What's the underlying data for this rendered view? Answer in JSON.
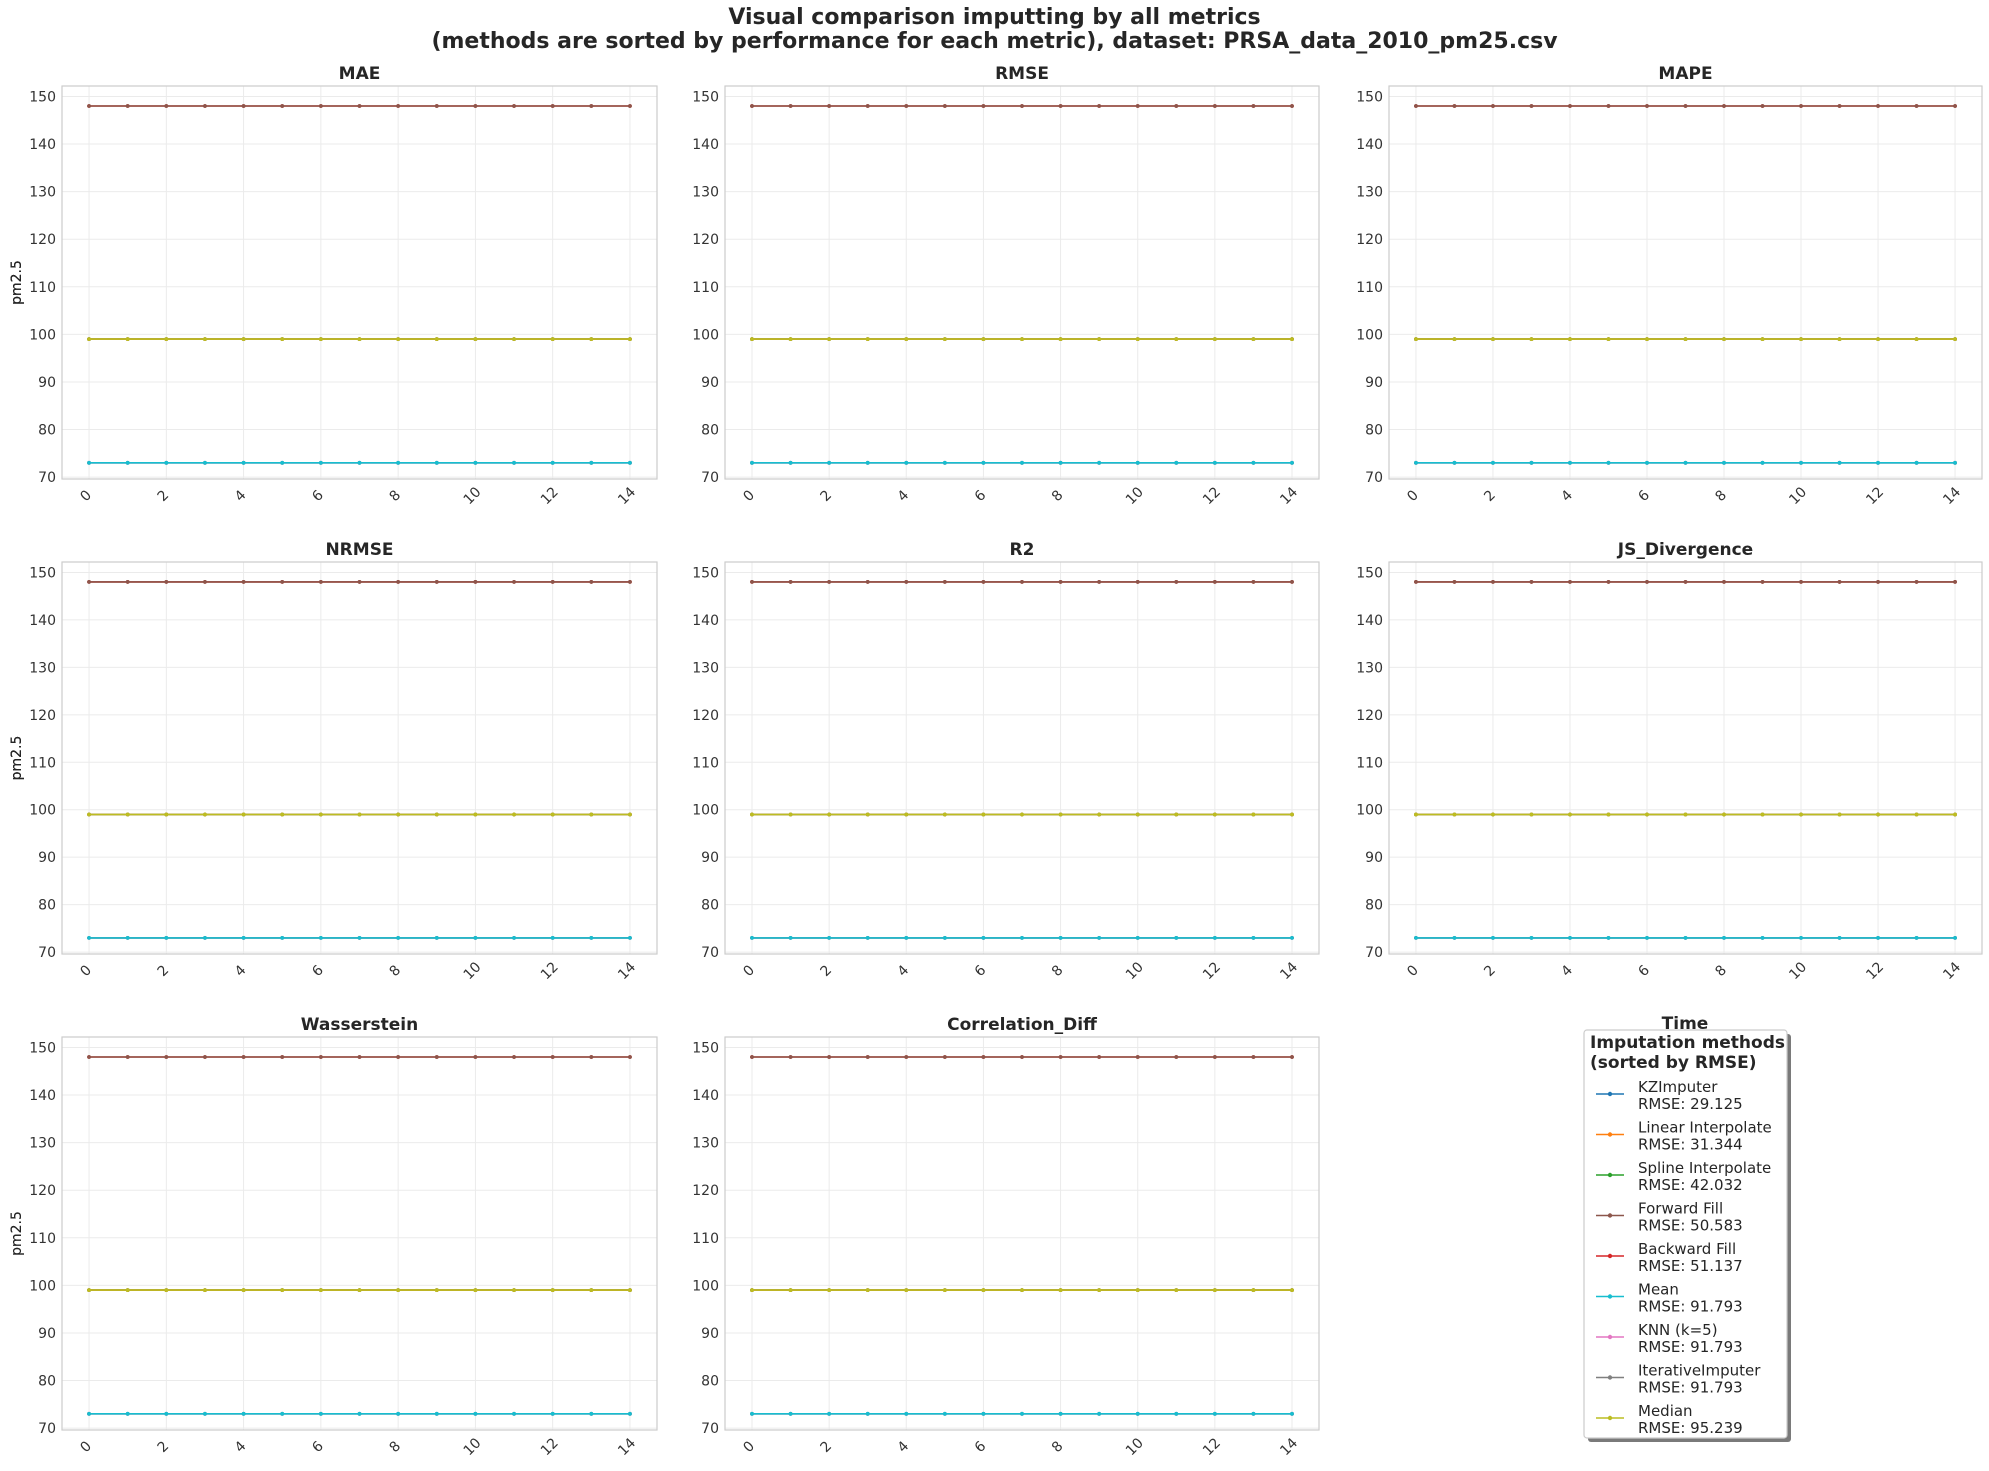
{
  "figure": {
    "title": "Visual comparison imputting by all metrics\n(methods are sorted by performance for each metric),  dataset: PRSA_data_2010_pm25.csv",
    "legend_title": "Imputation methods\n(sorted by RMSE)",
    "stray_label": "Time",
    "legend_placement": "bottom-right cell (third column, third row)"
  },
  "chart_data": [
    {
      "type": "line",
      "title": "MAE",
      "xlabel": "",
      "ylabel": "pm2.5",
      "xlim": [
        -0.7,
        14.7
      ],
      "ylim": [
        69.6,
        152.2
      ],
      "xticks": [
        0,
        2,
        4,
        6,
        8,
        10,
        12,
        14
      ],
      "yticks": [
        70,
        80,
        90,
        100,
        110,
        120,
        130,
        140,
        150
      ],
      "grid": true
    },
    {
      "type": "line",
      "title": "RMSE",
      "xlabel": "",
      "ylabel": "pm2.5",
      "xlim": [
        -0.7,
        14.7
      ],
      "ylim": [
        69.6,
        152.2
      ],
      "xticks": [
        0,
        2,
        4,
        6,
        8,
        10,
        12,
        14
      ],
      "yticks": [
        70,
        80,
        90,
        100,
        110,
        120,
        130,
        140,
        150
      ],
      "grid": true
    },
    {
      "type": "line",
      "title": "MAPE",
      "xlabel": "",
      "ylabel": "pm2.5",
      "xlim": [
        -0.7,
        14.7
      ],
      "ylim": [
        69.6,
        152.2
      ],
      "xticks": [
        0,
        2,
        4,
        6,
        8,
        10,
        12,
        14
      ],
      "yticks": [
        70,
        80,
        90,
        100,
        110,
        120,
        130,
        140,
        150
      ],
      "grid": true
    },
    {
      "type": "line",
      "title": "NRMSE",
      "xlabel": "",
      "ylabel": "pm2.5",
      "xlim": [
        -0.7,
        14.7
      ],
      "ylim": [
        69.6,
        152.2
      ],
      "xticks": [
        0,
        2,
        4,
        6,
        8,
        10,
        12,
        14
      ],
      "yticks": [
        70,
        80,
        90,
        100,
        110,
        120,
        130,
        140,
        150
      ],
      "grid": true
    },
    {
      "type": "line",
      "title": "R2",
      "xlabel": "",
      "ylabel": "pm2.5",
      "xlim": [
        -0.7,
        14.7
      ],
      "ylim": [
        69.6,
        152.2
      ],
      "xticks": [
        0,
        2,
        4,
        6,
        8,
        10,
        12,
        14
      ],
      "yticks": [
        70,
        80,
        90,
        100,
        110,
        120,
        130,
        140,
        150
      ],
      "grid": true
    },
    {
      "type": "line",
      "title": "JS_Divergence",
      "xlabel": "",
      "ylabel": "pm2.5",
      "xlim": [
        -0.7,
        14.7
      ],
      "ylim": [
        69.6,
        152.2
      ],
      "xticks": [
        0,
        2,
        4,
        6,
        8,
        10,
        12,
        14
      ],
      "yticks": [
        70,
        80,
        90,
        100,
        110,
        120,
        130,
        140,
        150
      ],
      "grid": true
    },
    {
      "type": "line",
      "title": "Wasserstein",
      "xlabel": "",
      "ylabel": "pm2.5",
      "xlim": [
        -0.7,
        14.7
      ],
      "ylim": [
        69.6,
        152.2
      ],
      "xticks": [
        0,
        2,
        4,
        6,
        8,
        10,
        12,
        14
      ],
      "yticks": [
        70,
        80,
        90,
        100,
        110,
        120,
        130,
        140,
        150
      ],
      "grid": true
    },
    {
      "type": "line",
      "title": "Correlation_Diff",
      "xlabel": "",
      "ylabel": "pm2.5",
      "xlim": [
        -0.7,
        14.7
      ],
      "ylim": [
        69.6,
        152.2
      ],
      "xticks": [
        0,
        2,
        4,
        6,
        8,
        10,
        12,
        14
      ],
      "yticks": [
        70,
        80,
        90,
        100,
        110,
        120,
        130,
        140,
        150
      ],
      "grid": true
    }
  ],
  "series_shared": {
    "x": [
      0,
      1,
      2,
      3,
      4,
      5,
      6,
      7,
      8,
      9,
      10,
      11,
      12,
      13,
      14
    ],
    "series": [
      {
        "name": "KZImputer",
        "metric": "RMSE: 29.125",
        "color": "#1f77b4",
        "values": [
          99,
          99,
          99,
          99,
          99,
          99,
          99,
          99,
          99,
          99,
          99,
          99,
          99,
          99,
          99
        ]
      },
      {
        "name": "Linear Interpolate",
        "metric": "RMSE: 31.344",
        "color": "#ff7f0e",
        "values": [
          99,
          99,
          99,
          99,
          99,
          99,
          99,
          99,
          99,
          99,
          99,
          99,
          99,
          99,
          99
        ]
      },
      {
        "name": "Spline Interpolate",
        "metric": "RMSE: 42.032",
        "color": "#2ca02c",
        "values": [
          99,
          99,
          99,
          99,
          99,
          99,
          99,
          99,
          99,
          99,
          99,
          99,
          99,
          99,
          99
        ]
      },
      {
        "name": "Forward Fill",
        "metric": "RMSE: 50.583",
        "color": "#8c564b",
        "values": [
          148,
          148,
          148,
          148,
          148,
          148,
          148,
          148,
          148,
          148,
          148,
          148,
          148,
          148,
          148
        ]
      },
      {
        "name": "Backward Fill",
        "metric": "RMSE: 51.137",
        "color": "#d62728",
        "values": [
          148,
          148,
          148,
          148,
          148,
          148,
          148,
          148,
          148,
          148,
          148,
          148,
          148,
          148,
          148
        ]
      },
      {
        "name": "Mean",
        "metric": "RMSE: 91.793",
        "color": "#17becf",
        "values": [
          73,
          73,
          73,
          73,
          73,
          73,
          73,
          73,
          73,
          73,
          73,
          73,
          73,
          73,
          73
        ]
      },
      {
        "name": "KNN (k=5)",
        "metric": "RMSE: 91.793",
        "color": "#e377c2",
        "values": [
          73,
          73,
          73,
          73,
          73,
          73,
          73,
          73,
          73,
          73,
          73,
          73,
          73,
          73,
          73
        ]
      },
      {
        "name": "IterativeImputer",
        "metric": "RMSE: 91.793",
        "color": "#7f7f7f",
        "values": [
          73,
          73,
          73,
          73,
          73,
          73,
          73,
          73,
          73,
          73,
          73,
          73,
          73,
          73,
          73
        ]
      },
      {
        "name": "Median",
        "metric": "RMSE: 95.239",
        "color": "#bcbd22",
        "values": [
          99,
          99,
          99,
          99,
          99,
          99,
          99,
          99,
          99,
          99,
          99,
          99,
          99,
          99,
          99
        ]
      }
    ]
  }
}
